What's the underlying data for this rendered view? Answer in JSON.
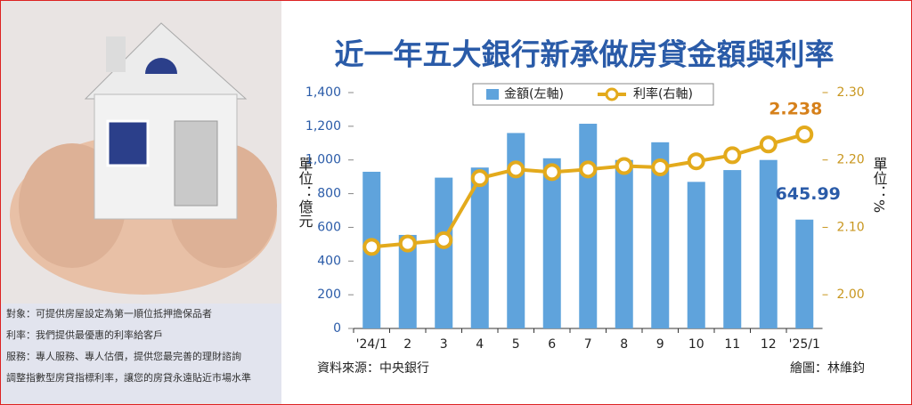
{
  "chart_data": {
    "type": "bar",
    "title": "近一年五大銀行新承做房貸金額與利率",
    "categories": [
      "'24/1",
      "2",
      "3",
      "4",
      "5",
      "6",
      "7",
      "8",
      "9",
      "10",
      "11",
      "12",
      "'25/1"
    ],
    "series": [
      {
        "name": "金額(左軸)",
        "type": "bar",
        "color": "#5fa3dc",
        "values": [
          930,
          555,
          895,
          955,
          1160,
          1010,
          1215,
          1000,
          1105,
          870,
          940,
          1000,
          645.99
        ]
      },
      {
        "name": "利率(右軸)",
        "type": "line",
        "axis": "y2",
        "color": "#e3aa1c",
        "values": [
          2.071,
          2.076,
          2.081,
          2.173,
          2.186,
          2.182,
          2.186,
          2.191,
          2.189,
          2.198,
          2.207,
          2.223,
          2.238
        ]
      }
    ],
    "ylim": [
      0,
      1400
    ],
    "yticks": [
      0,
      200,
      400,
      600,
      800,
      {
        "value": 1000,
        "label": "1,000"
      },
      {
        "value": 1200,
        "label": "1,200"
      },
      {
        "value": 1400,
        "label": "1,400"
      }
    ],
    "y2lim": [
      1.95,
      2.3
    ],
    "y2ticks": [
      {
        "value": 2.0,
        "label": "2.00"
      },
      {
        "value": 2.1,
        "label": "2.10"
      },
      {
        "value": 2.2,
        "label": "2.20"
      },
      {
        "value": 2.3,
        "label": "2.30"
      }
    ],
    "ylabel": "單位：億元",
    "y2label": "單位：%",
    "source": "資料來源：中央銀行",
    "credit": "繪圖：林維鈞"
  },
  "sidebar": {
    "lines": [
      "對象：可提供房屋設定為第一順位抵押擔保品者",
      "利率：我們提供最優惠的利率給客戶",
      "服務：專人服務、專人估價，提供您最完善的理財諮詢",
      "調整指數型房貸指標利率，讓您的房貸永遠貼近市場水準"
    ]
  }
}
